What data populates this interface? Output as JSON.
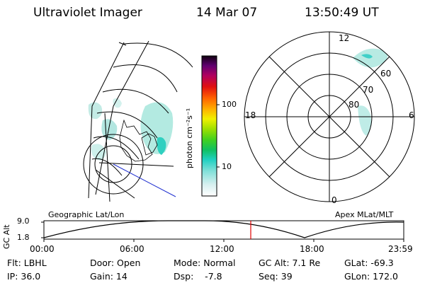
{
  "header": {
    "title": "Ultraviolet Imager",
    "date": "14 Mar 07",
    "time": "13:50:49 UT"
  },
  "colorbar": {
    "label": "photon cm⁻²s⁻¹",
    "ticks": [
      "100",
      "10"
    ],
    "scale": "log"
  },
  "polar_plot": {
    "mlt_labels": [
      "12",
      "18",
      "6",
      "0"
    ],
    "lat_labels": [
      "60",
      "70",
      "80"
    ]
  },
  "timeline": {
    "ylabel": "GC Alt",
    "y_ticks": [
      "9.0",
      "1.8"
    ],
    "left_caption": "Geographic Lat/Lon",
    "right_caption": "Apex MLat/MLT",
    "x_ticks": [
      "00:00",
      "06:00",
      "12:00",
      "18:00",
      "23:59"
    ],
    "current_time_marker": "13:50:49",
    "marker_color": "#e00000"
  },
  "info": {
    "filter": "Flt: LBHL",
    "door": "Door: Open",
    "mode": "Mode: Normal",
    "gc_alt": "GC Alt: 7.1 Re",
    "glat": "GLat: -69.3",
    "ip": "IP: 36.0",
    "gain": "Gain: 14",
    "dsp": "Dsp:    -7.8",
    "seq": "Seq: 39",
    "glon": "GLon: 172.0"
  }
}
